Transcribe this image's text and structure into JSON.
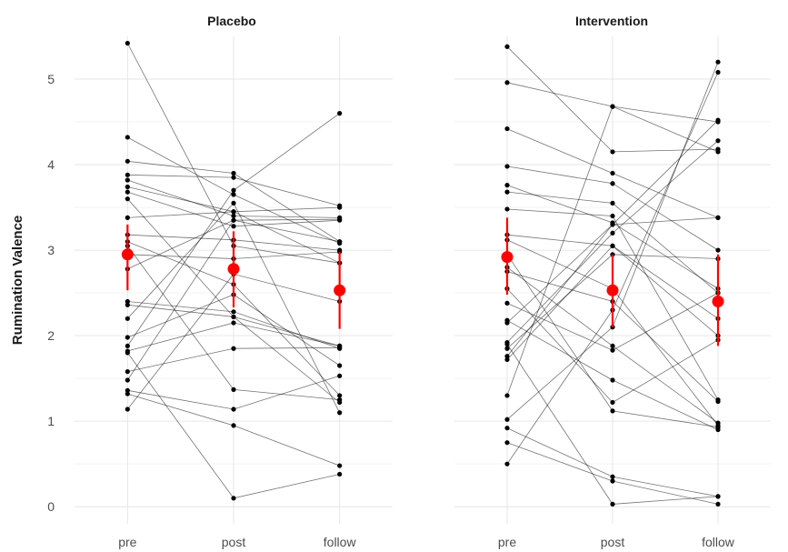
{
  "chart_data": {
    "type": "line",
    "ylabel": "Rumination Valence",
    "categories": [
      "pre",
      "post",
      "follow"
    ],
    "ylim": [
      -0.2,
      5.5
    ],
    "y_ticks": [
      "0",
      "1",
      "2",
      "3",
      "4",
      "5"
    ],
    "grid": true,
    "colors": {
      "individual": "#000000",
      "summary": "#ff0000"
    },
    "panels": [
      {
        "title": "Placebo",
        "subjects": [
          [
            5.42,
            3.05,
            2.85
          ],
          [
            4.32,
            3.65,
            3.08
          ],
          [
            4.04,
            3.9,
            3.1
          ],
          [
            3.88,
            3.85,
            3.52
          ],
          [
            3.82,
            3.4,
            3.38
          ],
          [
            3.74,
            3.45,
            2.85
          ],
          [
            3.68,
            3.28,
            3.35
          ],
          [
            3.6,
            2.22,
            1.88
          ],
          [
            3.38,
            3.45,
            3.5
          ],
          [
            3.18,
            3.12,
            3.0
          ],
          [
            3.1,
            2.6,
            1.3
          ],
          [
            3.05,
            1.37,
            1.25
          ],
          [
            2.95,
            2.9,
            2.98
          ],
          [
            2.78,
            3.35,
            3.1
          ],
          [
            2.4,
            2.28,
            1.85
          ],
          [
            2.36,
            2.22,
            1.22
          ],
          [
            2.2,
            3.55,
            1.1
          ],
          [
            1.98,
            2.48,
            1.65
          ],
          [
            1.88,
            3.7,
            4.6
          ],
          [
            1.82,
            2.15,
            1.88
          ],
          [
            1.8,
            0.1,
            0.38
          ],
          [
            1.58,
            1.85,
            1.86
          ],
          [
            1.48,
            3.35,
            3.36
          ],
          [
            1.36,
            1.14,
            1.53
          ],
          [
            1.32,
            0.95,
            0.48
          ],
          [
            1.14,
            2.72,
            2.4
          ]
        ],
        "summary": {
          "mean": [
            2.95,
            2.78,
            2.53
          ],
          "lower": [
            2.53,
            2.33,
            2.08
          ],
          "upper": [
            3.3,
            3.22,
            2.98
          ]
        }
      },
      {
        "title": "Intervention",
        "subjects": [
          [
            5.38,
            4.15,
            4.18
          ],
          [
            4.96,
            4.68,
            4.5
          ],
          [
            4.42,
            3.9,
            3.38
          ],
          [
            3.98,
            3.78,
            3.0
          ],
          [
            3.76,
            3.32,
            2.55
          ],
          [
            3.68,
            3.55,
            2.5
          ],
          [
            3.48,
            3.4,
            1.25
          ],
          [
            3.18,
            3.05,
            2.2
          ],
          [
            3.12,
            2.55,
            0.95
          ],
          [
            2.8,
            1.88,
            0.98
          ],
          [
            2.75,
            2.4,
            1.23
          ],
          [
            2.38,
            1.83,
            2.5
          ],
          [
            2.18,
            1.48,
            0.9
          ],
          [
            2.15,
            3.3,
            4.52
          ],
          [
            1.92,
            3.2,
            4.28
          ],
          [
            1.85,
            2.95,
            2.9
          ],
          [
            1.76,
            3.3,
            3.38
          ],
          [
            1.72,
            3.05,
            2.0
          ],
          [
            1.3,
            4.68,
            4.15
          ],
          [
            1.02,
            2.1,
            5.2
          ],
          [
            0.92,
            0.35,
            0.12
          ],
          [
            0.75,
            0.3,
            0.03
          ],
          [
            0.5,
            2.3,
            5.08
          ],
          [
            2.55,
            1.22,
            1.95
          ],
          [
            1.9,
            0.03,
            0.12
          ],
          [
            2.95,
            1.12,
            0.93
          ]
        ],
        "summary": {
          "mean": [
            2.92,
            2.53,
            2.4
          ],
          "lower": [
            2.48,
            2.1,
            1.88
          ],
          "upper": [
            3.38,
            2.95,
            2.95
          ]
        }
      }
    ]
  }
}
